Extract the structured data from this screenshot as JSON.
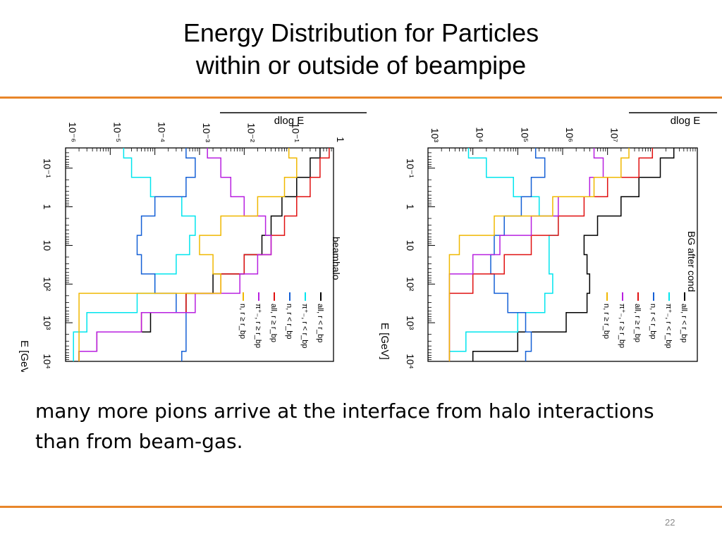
{
  "slide": {
    "title_line1": "Energy Distribution for Particles",
    "title_line2": "within or outside of beampipe",
    "body_text": "many more pions arrive at the interface from halo interactions than from beam-gas.",
    "page_number": "22",
    "accent_color": "#e8862a"
  },
  "chart_data": [
    {
      "type": "line",
      "title": "beamhalo",
      "orientation": "rotated 90° (energy axis vertical, counts axis horizontal)",
      "xlabel": "E [GeV]",
      "ylabel": "dN(counts/TOT hit)/dlog E",
      "ylabel_visible": "dlog E",
      "x_scale": "log",
      "y_scale": "log",
      "x_ticks": [
        "10⁻¹",
        "1",
        "10",
        "10²",
        "10³",
        "10⁴"
      ],
      "y_ticks": [
        "10⁻⁶",
        "10⁻⁵",
        "10⁻⁴",
        "10⁻³",
        "10⁻²",
        "10⁻¹",
        "1"
      ],
      "xlim": [
        0.03,
        10000
      ],
      "ylim": [
        1e-06,
        1
      ],
      "legend": [
        {
          "label": "all, r < r_bp",
          "color": "#000000"
        },
        {
          "label": "π⁺₋, r < r_bp",
          "color": "#00e5ee"
        },
        {
          "label": "n, r < r_bp",
          "color": "#1560d6"
        },
        {
          "label": "all, r ≥ r_bp",
          "color": "#e01010"
        },
        {
          "label": "π⁺₋, r ≥ r_bp",
          "color": "#b820e0"
        },
        {
          "label": "n, r ≥ r_bp",
          "color": "#f0b800"
        }
      ],
      "legend_position": "bottom-right",
      "series": [
        {
          "name": "all, r < r_bp",
          "color": "#000000",
          "x": [
            0.03,
            0.1,
            0.3,
            1,
            3,
            10,
            30,
            100,
            300,
            1000,
            3000,
            10000
          ],
          "y": [
            0.5,
            0.3,
            0.15,
            0.07,
            0.04,
            0.025,
            0.01,
            0.002,
            0.0005,
            8e-05,
            5e-06,
            2e-06
          ]
        },
        {
          "name": "π⁺₋, r < r_bp",
          "color": "#00e5ee",
          "x": [
            0.03,
            0.1,
            0.3,
            1,
            3,
            10,
            30,
            100,
            300,
            1000,
            3000,
            10000
          ],
          "y": [
            2e-05,
            3e-05,
            8e-05,
            0.0004,
            0.0008,
            0.0006,
            0.0003,
            0.0001,
            4e-05,
            3e-06,
            1.5e-06,
            1.5e-06
          ]
        },
        {
          "name": "n, r < r_bp",
          "color": "#1560d6",
          "x": [
            0.03,
            0.1,
            0.3,
            1,
            3,
            10,
            30,
            100,
            300,
            1000,
            3000,
            10000
          ],
          "y": [
            0.0005,
            0.0008,
            0.0005,
            0.0001,
            5e-05,
            4e-05,
            5e-05,
            0.0001,
            0.0003,
            0.0005,
            0.0005,
            0.0004
          ]
        },
        {
          "name": "all, r ≥ r_bp",
          "color": "#e01010",
          "x": [
            0.03,
            0.1,
            0.3,
            1,
            3,
            10,
            30,
            100,
            300,
            1000,
            3000,
            10000
          ],
          "y": [
            0.8,
            0.5,
            0.3,
            0.15,
            0.08,
            0.04,
            0.01,
            0.003,
            0.0005,
            5e-05,
            5e-06,
            2e-06
          ]
        },
        {
          "name": "π⁺₋, r ≥ r_bp",
          "color": "#b820e0",
          "x": [
            0.03,
            0.1,
            0.3,
            1,
            3,
            10,
            30,
            100,
            300,
            1000,
            3000,
            10000
          ],
          "y": [
            0.0015,
            0.003,
            0.005,
            0.01,
            0.03,
            0.04,
            0.02,
            0.008,
            0.0008,
            5e-05,
            5e-06,
            2e-06
          ]
        },
        {
          "name": "n, r ≥ r_bp",
          "color": "#f0b800",
          "x": [
            0.03,
            0.1,
            0.3,
            1,
            3,
            10,
            30,
            100,
            300,
            1000,
            3000,
            10000
          ],
          "y": [
            0.1,
            0.15,
            0.08,
            0.02,
            0.003,
            0.001,
            0.002,
            0.003,
            2e-06,
            2e-06,
            2e-06,
            2e-06
          ]
        }
      ]
    },
    {
      "type": "line",
      "title": "BG after cond",
      "orientation": "rotated 90° (energy axis vertical, counts axis horizontal)",
      "xlabel": "E [GeV]",
      "ylabel": "dN(counts/TOT hit)/dlog E",
      "ylabel_visible": "dlog E",
      "x_scale": "log",
      "y_scale": "log",
      "x_ticks": [
        "10⁻¹",
        "1",
        "10",
        "10²",
        "10³",
        "10⁴"
      ],
      "y_ticks": [
        "10³",
        "10⁴",
        "10⁵",
        "10⁶",
        "10⁷"
      ],
      "xlim": [
        0.03,
        10000
      ],
      "ylim": [
        100,
        100000000
      ],
      "legend": [
        {
          "label": "all, r < r_bp",
          "color": "#000000"
        },
        {
          "label": "π⁺₋, r < r_bp",
          "color": "#00e5ee"
        },
        {
          "label": "n, r < r_bp",
          "color": "#1560d6"
        },
        {
          "label": "all, r ≥ r_bp",
          "color": "#e01010"
        },
        {
          "label": "π⁺₋, r ≥ r_bp",
          "color": "#b820e0"
        },
        {
          "label": "n, r ≥ r_bp",
          "color": "#f0b800"
        }
      ],
      "legend_position": "bottom-right",
      "series": [
        {
          "name": "all, r < r_bp",
          "color": "#000000",
          "x": [
            0.03,
            0.1,
            0.3,
            1,
            3,
            10,
            30,
            100,
            300,
            1000,
            3000,
            10000
          ],
          "y": [
            30000000.0,
            15000000.0,
            5000000.0,
            2000000.0,
            600000.0,
            300000.0,
            350000.0,
            400000.0,
            350000.0,
            120000.0,
            10000.0,
            1000.0
          ]
        },
        {
          "name": "π⁺₋, r < r_bp",
          "color": "#00e5ee",
          "x": [
            0.03,
            0.1,
            0.3,
            1,
            3,
            10,
            30,
            100,
            300,
            1000,
            3000,
            10000
          ],
          "y": [
            800,
            2000,
            8000,
            30000,
            80000,
            50000,
            50000,
            60000,
            40000,
            10000,
            700,
            300
          ]
        },
        {
          "name": "n, r < r_bp",
          "color": "#1560d6",
          "x": [
            0.03,
            0.1,
            0.3,
            1,
            3,
            10,
            30,
            100,
            300,
            1000,
            3000,
            10000
          ],
          "y": [
            25000,
            40000,
            20000,
            12000,
            5000,
            3000,
            2500,
            3000,
            6000,
            15000,
            20000,
            15000
          ]
        },
        {
          "name": "all, r ≥ r_bp",
          "color": "#e01010",
          "x": [
            0.03,
            0.1,
            0.3,
            1,
            3,
            10,
            30,
            100,
            300,
            1000,
            3000,
            10000
          ],
          "y": [
            10000000.0,
            5000000.0,
            1000000.0,
            300000.0,
            80000.0,
            20000.0,
            5000.0,
            1000.0,
            300,
            300,
            300,
            300
          ]
        },
        {
          "name": "π⁺₋, r ≥ r_bp",
          "color": "#b820e0",
          "x": [
            0.03,
            0.1,
            0.3,
            1,
            3,
            10,
            30,
            100,
            300,
            1000,
            3000,
            10000
          ],
          "y": [
            500000.0,
            800000.0,
            400000.0,
            80000.0,
            20000.0,
            4000.0,
            1000.0,
            300,
            300,
            300,
            300,
            300
          ]
        },
        {
          "name": "n, r ≥ r_bp",
          "color": "#f0b800",
          "x": [
            0.03,
            0.1,
            0.3,
            1,
            3,
            10,
            30,
            100,
            300,
            1000,
            3000,
            10000
          ],
          "y": [
            3000000.0,
            2000000.0,
            500000.0,
            60000.0,
            3000.0,
            500,
            300,
            300,
            300,
            300,
            300,
            300
          ]
        }
      ]
    }
  ]
}
